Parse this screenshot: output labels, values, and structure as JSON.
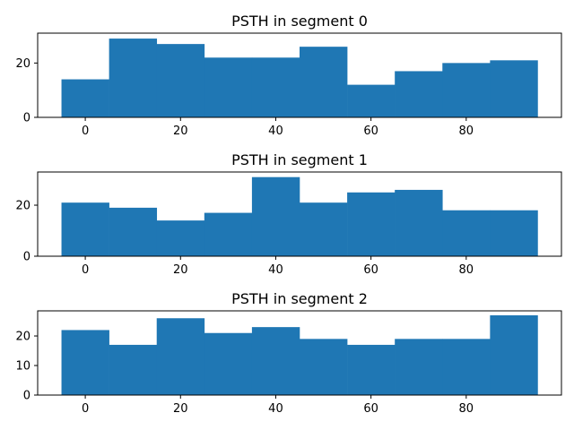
{
  "chart_data": [
    {
      "type": "bar",
      "title": "PSTH in segment 0",
      "bins_x": [
        0,
        10,
        20,
        30,
        40,
        50,
        60,
        70,
        80,
        90
      ],
      "values": [
        14,
        29,
        27,
        22,
        22,
        26,
        12,
        17,
        20,
        21
      ],
      "xlim": [
        -10,
        100
      ],
      "ylim": [
        0,
        31
      ],
      "xticks": [
        0,
        20,
        40,
        60,
        80
      ],
      "yticks": [
        0,
        20
      ],
      "color": "#1f77b4"
    },
    {
      "type": "bar",
      "title": "PSTH in segment 1",
      "bins_x": [
        0,
        10,
        20,
        30,
        40,
        50,
        60,
        70,
        80,
        90
      ],
      "values": [
        21,
        19,
        14,
        17,
        31,
        21,
        25,
        26,
        18,
        18
      ],
      "xlim": [
        -10,
        100
      ],
      "ylim": [
        0,
        33
      ],
      "xticks": [
        0,
        20,
        40,
        60,
        80
      ],
      "yticks": [
        0,
        20
      ],
      "color": "#1f77b4"
    },
    {
      "type": "bar",
      "title": "PSTH in segment 2",
      "bins_x": [
        0,
        10,
        20,
        30,
        40,
        50,
        60,
        70,
        80,
        90
      ],
      "values": [
        22,
        17,
        26,
        21,
        23,
        19,
        17,
        19,
        19,
        27
      ],
      "xlim": [
        -10,
        100
      ],
      "ylim": [
        0,
        28.5
      ],
      "xticks": [
        0,
        20,
        40,
        60,
        80
      ],
      "yticks": [
        0,
        10,
        20
      ],
      "color": "#1f77b4"
    }
  ]
}
